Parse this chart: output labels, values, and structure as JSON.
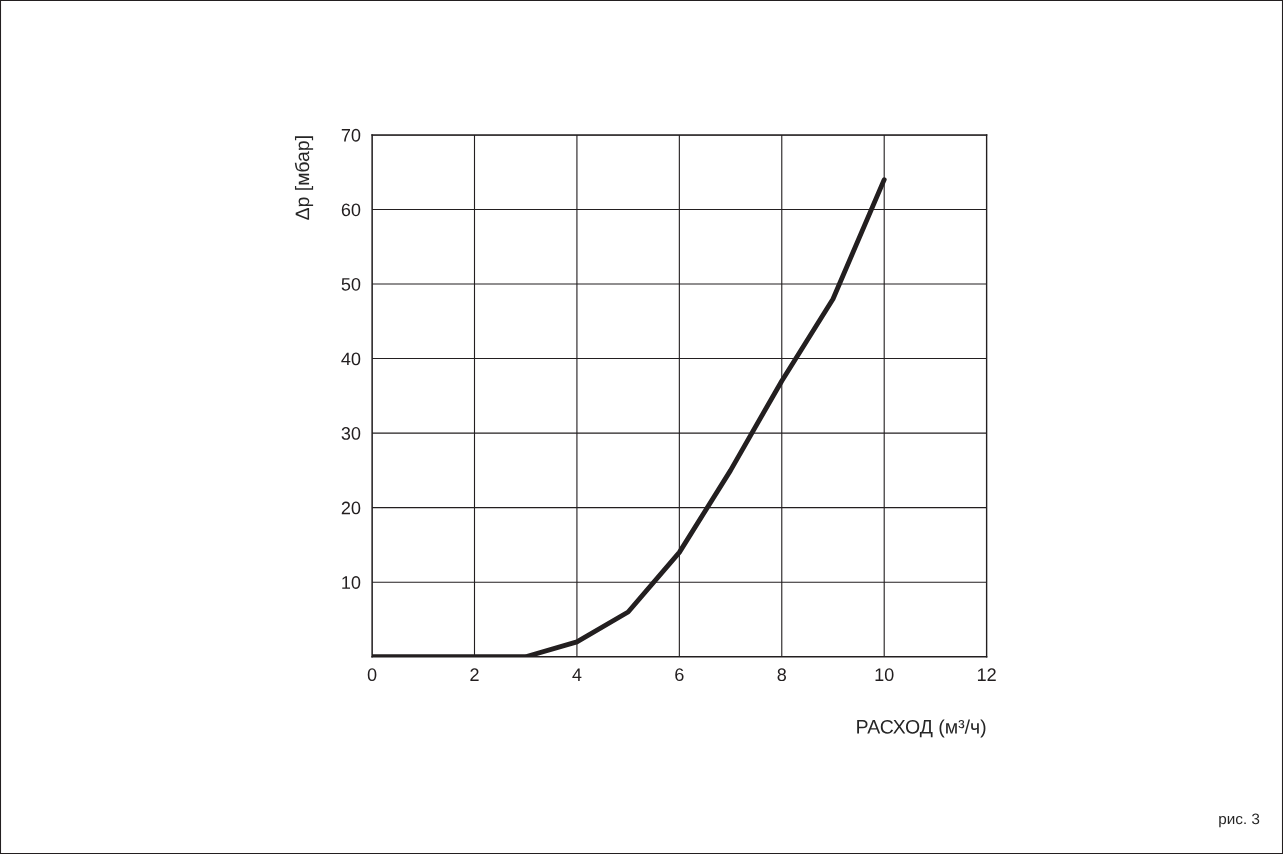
{
  "chart_data": {
    "type": "line",
    "xlabel": "РАСХОД (м³/ч)",
    "ylabel": "Δp [мбар]",
    "x": [
      0,
      3,
      4,
      5,
      6,
      7,
      8,
      9,
      10
    ],
    "series": [
      {
        "color": "#231f20",
        "values": [
          0,
          0,
          2,
          6,
          14,
          25,
          37,
          48,
          64
        ]
      }
    ],
    "xlim": [
      0,
      12
    ],
    "xticks": [
      0,
      2,
      4,
      6,
      8,
      10,
      12
    ],
    "ylim": [
      0,
      70
    ],
    "yticks": [
      {
        "value": 0,
        "label": null
      },
      10,
      20,
      30,
      40,
      50,
      60,
      70
    ],
    "grid": true,
    "legend": false,
    "marker": "none",
    "line_style": "solid",
    "annotations": [
      "рис. 3"
    ]
  }
}
